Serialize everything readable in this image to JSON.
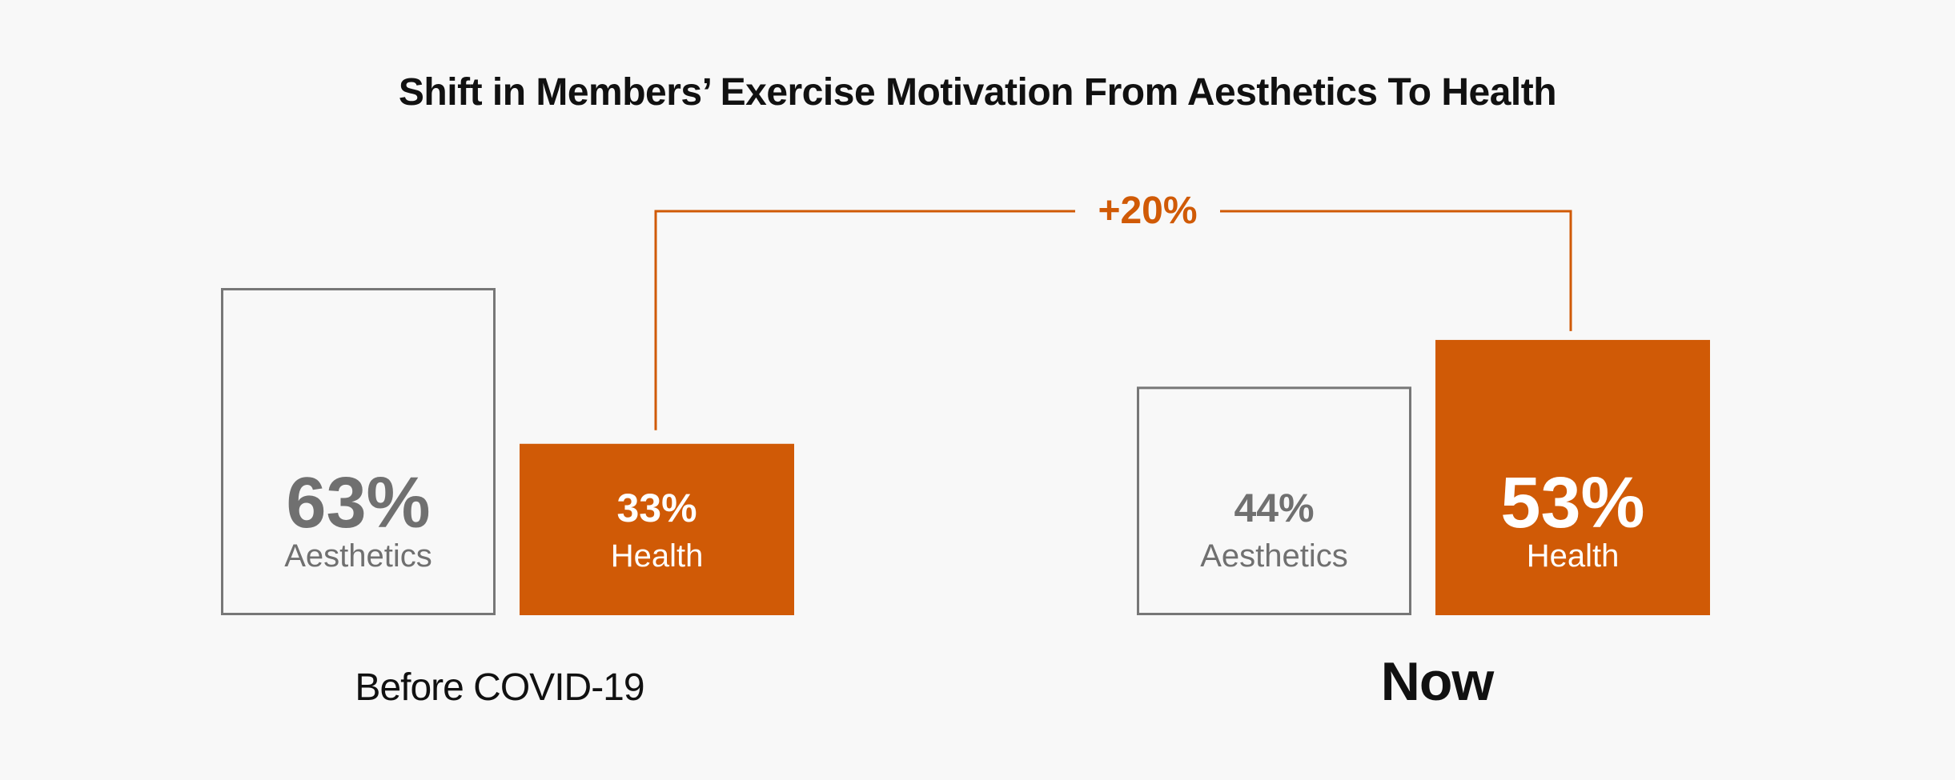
{
  "chart_data": {
    "type": "bar",
    "title": "Shift in Members’ Exercise Motivation From Aesthetics To Health",
    "categories": [
      "Before COVID-19",
      "Now"
    ],
    "series": [
      {
        "name": "Aesthetics",
        "values": [
          63,
          44
        ],
        "labels": [
          "63%",
          "44%"
        ]
      },
      {
        "name": "Health",
        "values": [
          33,
          53
        ],
        "labels": [
          "33%",
          "53%"
        ]
      }
    ],
    "annotation": {
      "text": "+20%"
    },
    "ylim": [
      0,
      63
    ],
    "legend": "none",
    "grid": false
  },
  "colors": {
    "aesthetics_stroke": "#777777",
    "aesthetics_text": "#707070",
    "health_fill": "#d05a06",
    "health_text": "#ffffff",
    "annotation": "#d05a06",
    "background": "#f8f8f8",
    "title": "#111111"
  }
}
